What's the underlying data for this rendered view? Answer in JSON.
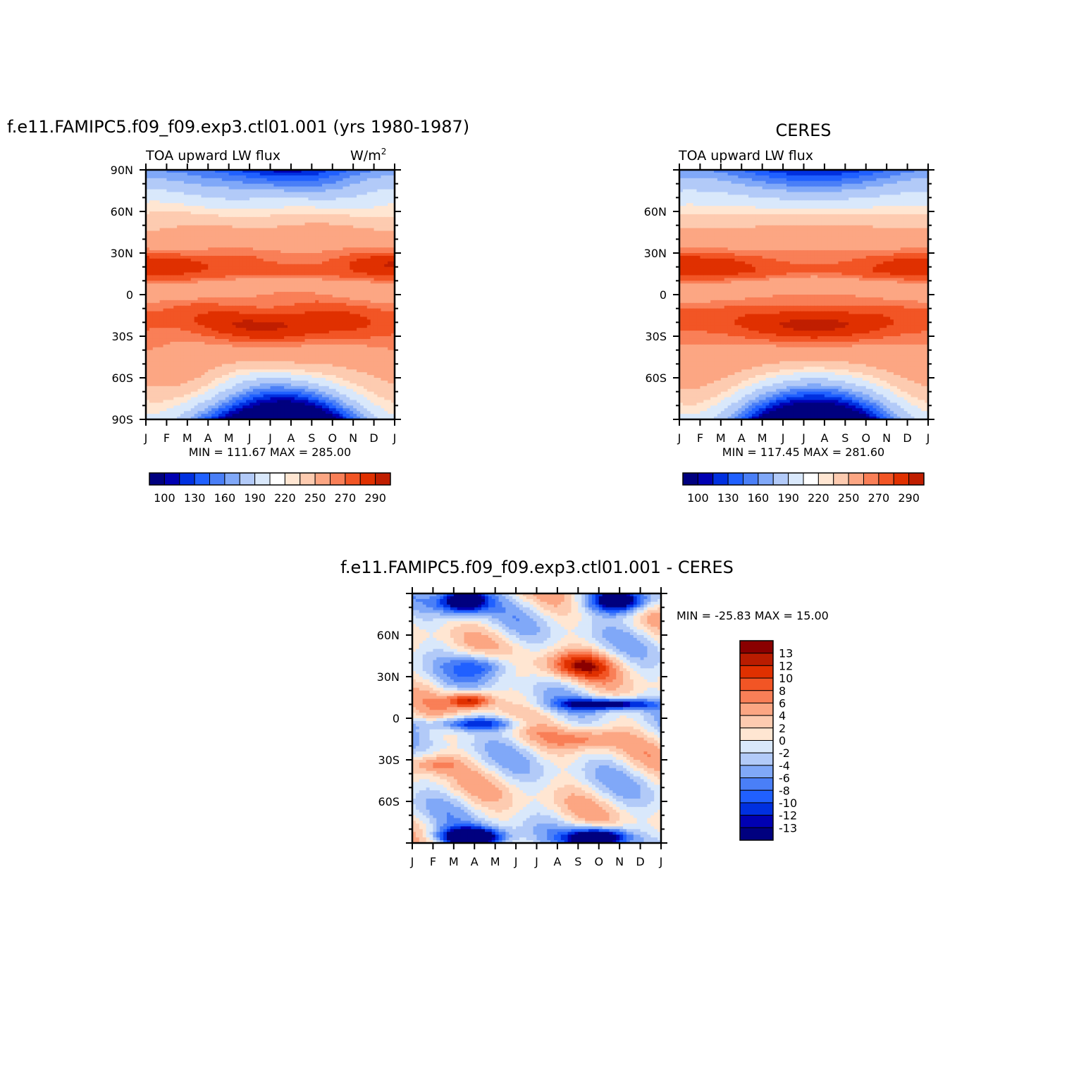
{
  "panels": [
    {
      "title": "f.e11.FAMIPC5.f09_f09.exp3.ctl01.001 (yrs 1980-1987)",
      "subtitle_left": "TOA upward LW flux",
      "units": "W/m",
      "units_sup": "2",
      "stats": "MIN = 111.67  MAX = 285.00"
    },
    {
      "title": "CERES",
      "subtitle_left": "TOA upward LW flux",
      "stats": "MIN = 117.45  MAX = 281.60"
    },
    {
      "title": "f.e11.FAMIPC5.f09_f09.exp3.ctl01.001 - CERES",
      "stats": "MIN = -25.83  MAX =   15.00"
    }
  ],
  "chart_data": [
    {
      "type": "heatmap",
      "x_ticks": [
        "J",
        "F",
        "M",
        "A",
        "M",
        "J",
        "J",
        "A",
        "S",
        "O",
        "N",
        "D",
        "J"
      ],
      "y_ticks": [
        "90N",
        "60N",
        "30N",
        "0",
        "30S",
        "60S",
        "90S"
      ],
      "ylim": [
        -90,
        90
      ],
      "zmin": 111.67,
      "zmax": 285.0,
      "colorbar_levels": [
        100,
        110,
        120,
        130,
        140,
        150,
        160,
        170,
        180,
        190,
        200,
        210,
        220,
        230,
        240,
        250,
        260,
        270,
        280,
        290
      ],
      "colorbar_labels": [
        "100",
        "130",
        "160",
        "190",
        "220",
        "250",
        "270",
        "290"
      ],
      "colors": [
        "#00007f",
        "#0000b2",
        "#0030e0",
        "#2060ff",
        "#4a7ff7",
        "#80a8f8",
        "#b2caf8",
        "#d9e8fb",
        "#ffffff",
        "#ffe6d2",
        "#fdcbb0",
        "#fca683",
        "#f97f57",
        "#f25525",
        "#e03000",
        "#c01e00",
        "#9e0c00",
        "#800000"
      ]
    },
    {
      "type": "heatmap",
      "x_ticks": [
        "J",
        "F",
        "M",
        "A",
        "M",
        "J",
        "J",
        "A",
        "S",
        "O",
        "N",
        "D",
        "J"
      ],
      "y_ticks": [
        "60N",
        "30N",
        "0",
        "30S",
        "60S"
      ],
      "ylim": [
        -90,
        90
      ],
      "zmin": 117.45,
      "zmax": 281.6,
      "colorbar_labels": [
        "100",
        "130",
        "160",
        "190",
        "220",
        "250",
        "270",
        "290"
      ]
    },
    {
      "type": "heatmap",
      "x_ticks": [
        "J",
        "F",
        "M",
        "A",
        "M",
        "J",
        "J",
        "A",
        "S",
        "O",
        "N",
        "D",
        "J"
      ],
      "y_ticks": [
        "60N",
        "30N",
        "0",
        "30S",
        "60S"
      ],
      "ylim": [
        -90,
        90
      ],
      "zmin": -25.83,
      "zmax": 15.0,
      "colorbar_labels": [
        "13",
        "12",
        "10",
        "8",
        "6",
        "4",
        "2",
        "0",
        "-2",
        "-4",
        "-6",
        "-8",
        "-10",
        "-12",
        "-13"
      ],
      "colors_top_to_bottom": [
        "#8a0000",
        "#b91c00",
        "#e03000",
        "#f25525",
        "#f97f57",
        "#fca683",
        "#fdcbb0",
        "#ffe6d2",
        "#d9e8fb",
        "#b2caf8",
        "#80a8f8",
        "#4a7ff7",
        "#2060ff",
        "#0030e0",
        "#0000b2",
        "#00007f"
      ]
    }
  ]
}
